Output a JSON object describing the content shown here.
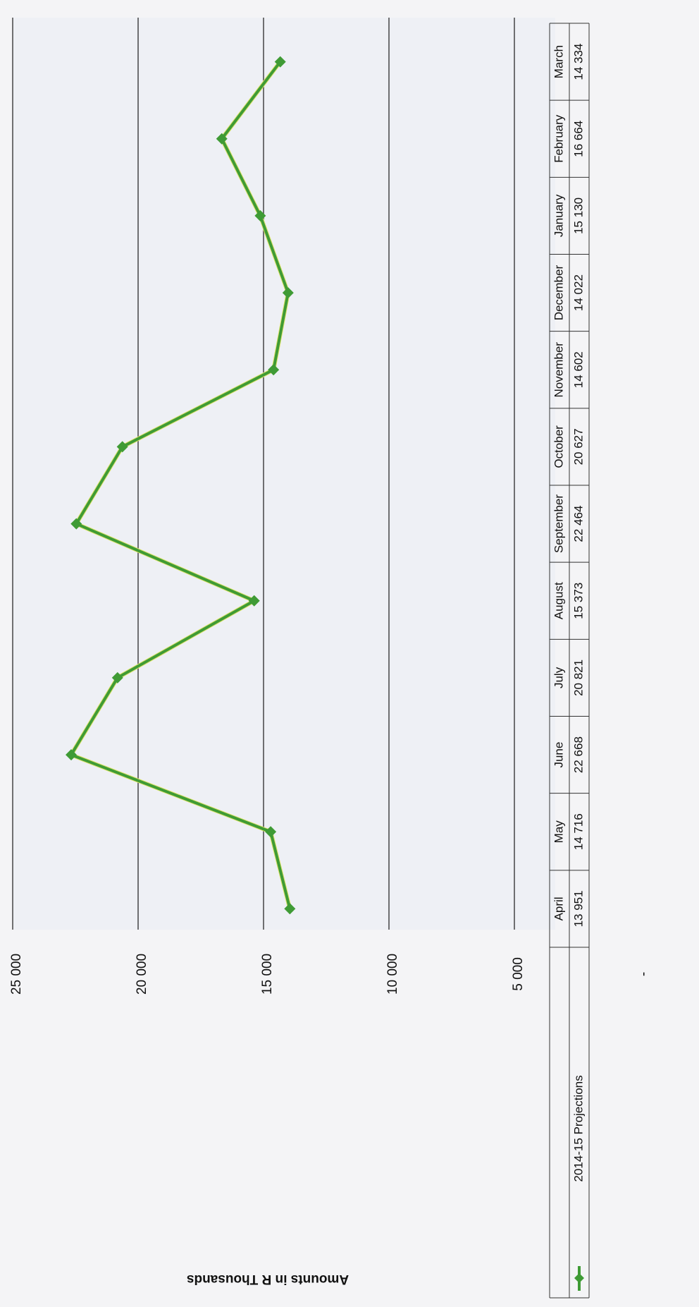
{
  "chart_data": {
    "type": "line",
    "title": "",
    "xlabel": "",
    "ylabel": "Amounts in R Thousands",
    "ylim": [
      0,
      25000
    ],
    "y_ticks": [
      {
        "value": 0,
        "label": "-"
      },
      {
        "value": 5000,
        "label": "5 000"
      },
      {
        "value": 10000,
        "label": "10 000"
      },
      {
        "value": 15000,
        "label": "15 000"
      },
      {
        "value": 20000,
        "label": "20 000"
      },
      {
        "value": 25000,
        "label": "25 000"
      }
    ],
    "categories": [
      "April",
      "May",
      "June",
      "July",
      "August",
      "September",
      "October",
      "November",
      "December",
      "January",
      "February",
      "March"
    ],
    "grid": true,
    "legend": "bottom-left, within data table",
    "rotation": "chart printed rotated 90° counter-clockwise",
    "series": [
      {
        "name": "2014-15 Projections",
        "color": "#3f9b35",
        "values": [
          13951,
          14716,
          22668,
          20821,
          15373,
          22464,
          20627,
          14602,
          14022,
          15130,
          16664,
          14334
        ],
        "value_labels": [
          "13 951",
          "14 716",
          "22 668",
          "20 821",
          "15 373",
          "22 464",
          "20 627",
          "14 602",
          "14 022",
          "15 130",
          "16 664",
          "14 334"
        ]
      }
    ]
  }
}
